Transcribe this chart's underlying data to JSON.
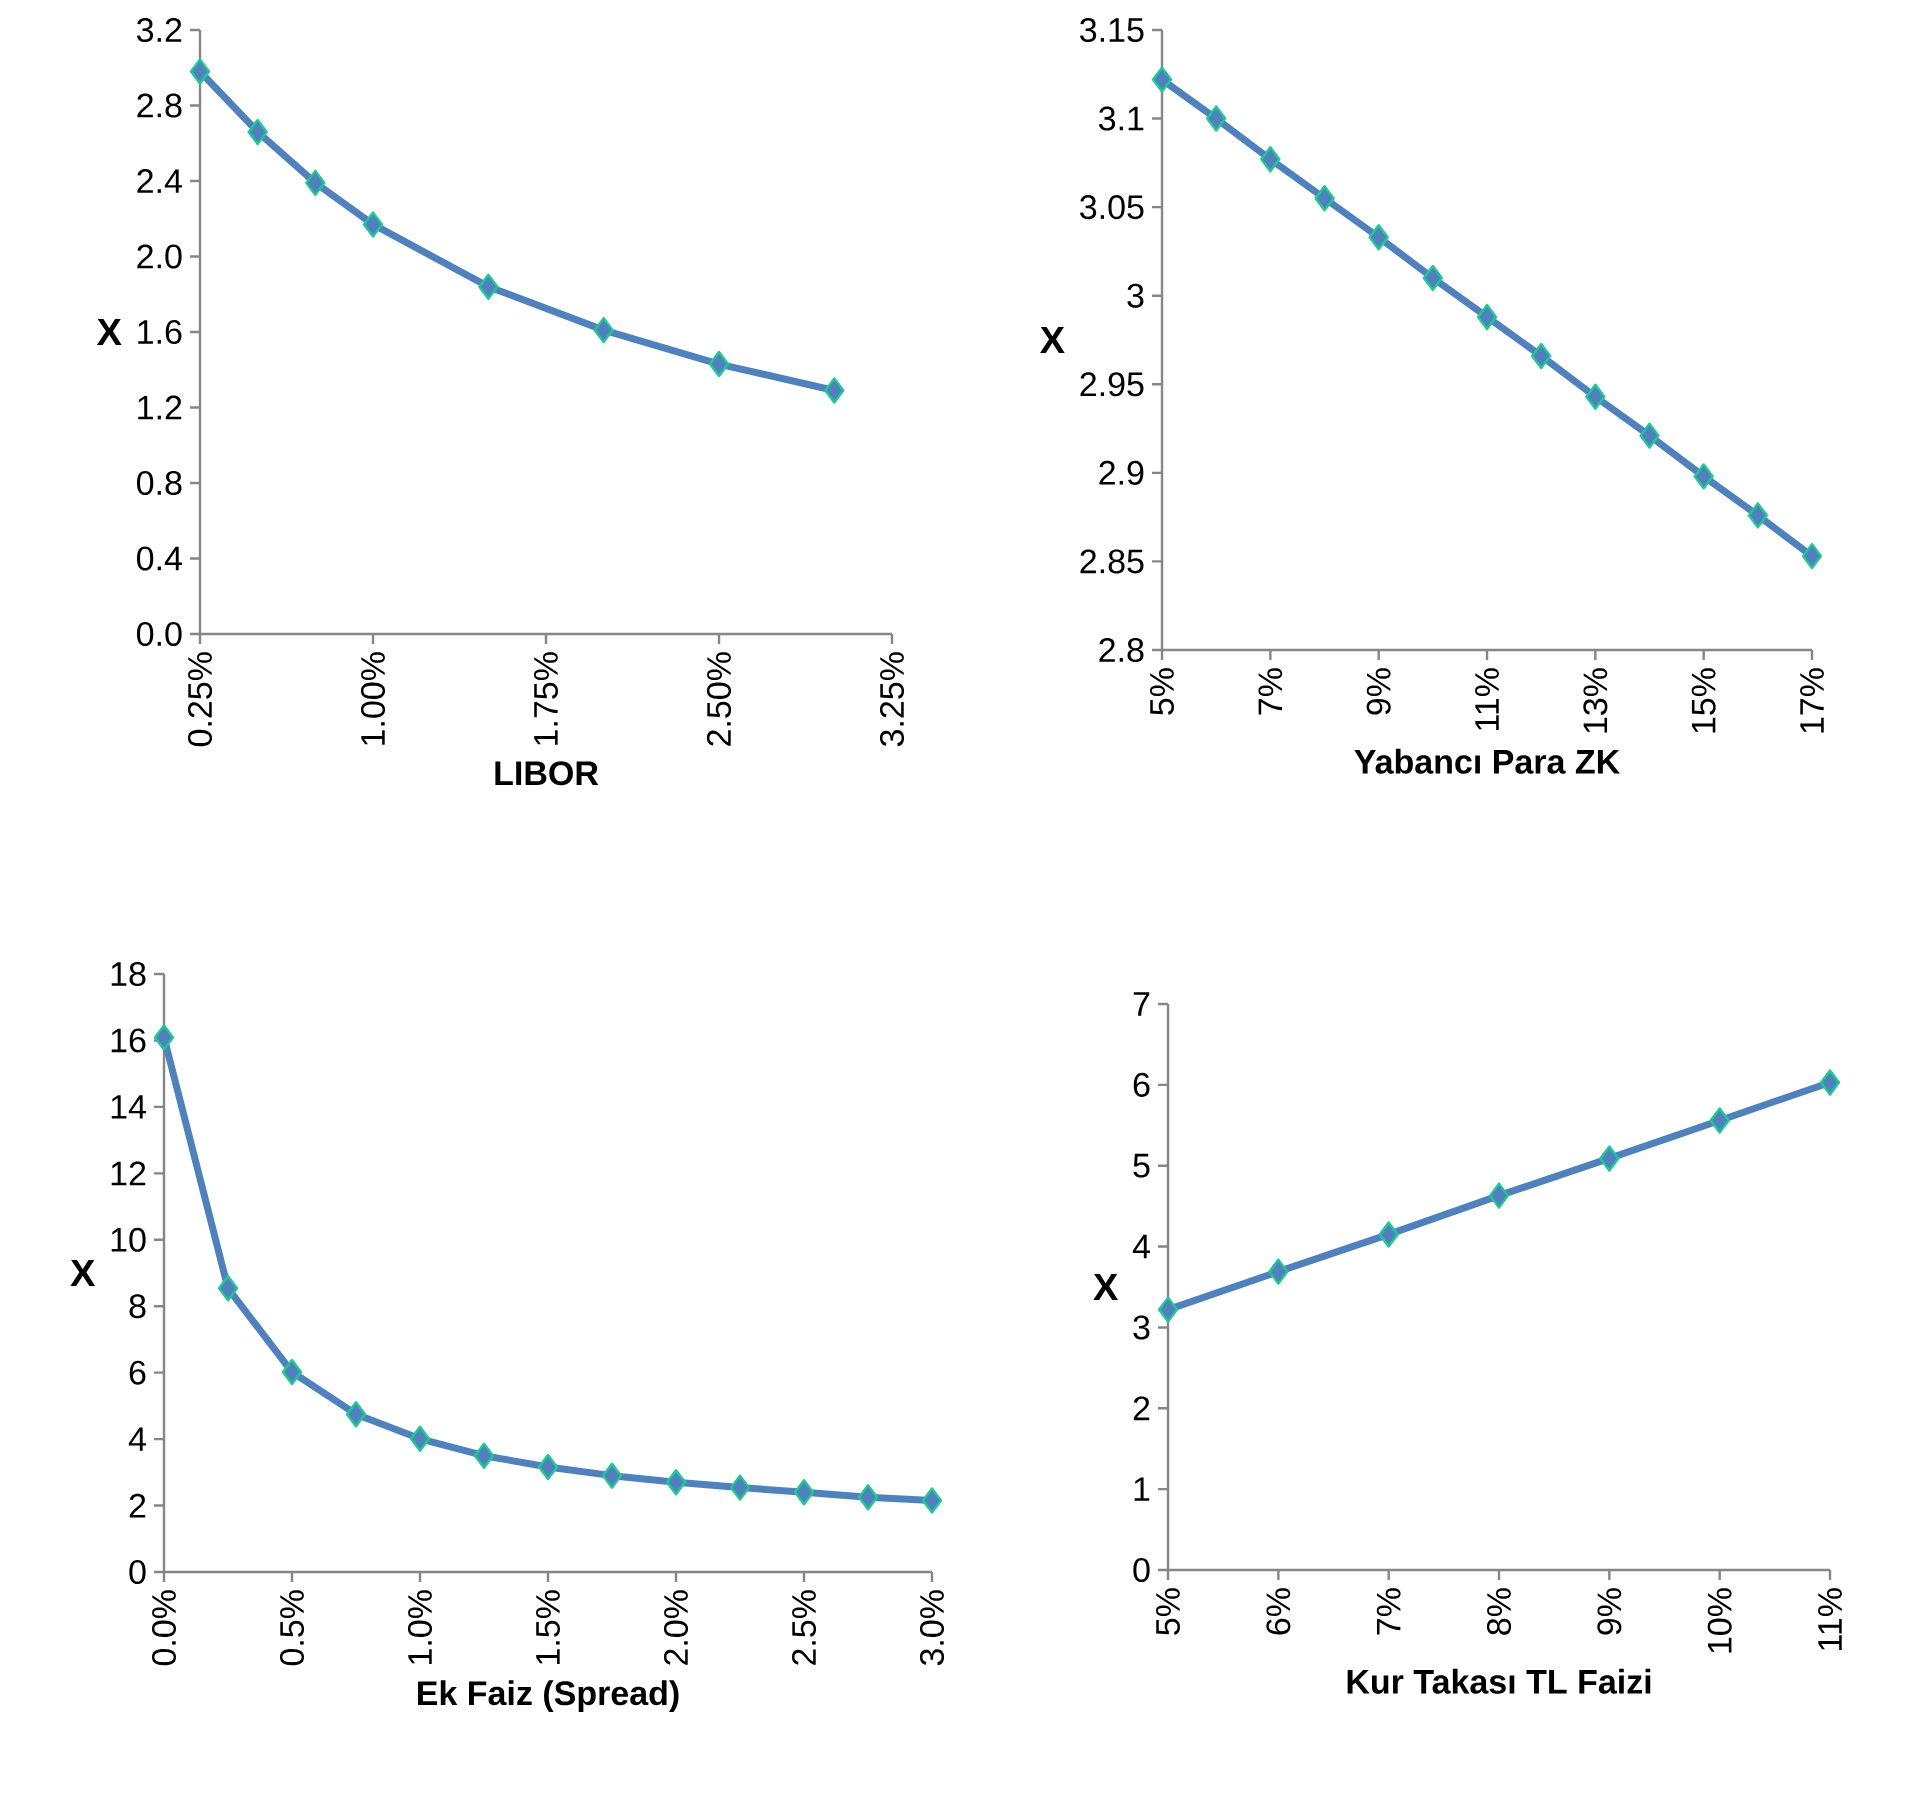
{
  "chart_data": [
    {
      "type": "line",
      "xlabel": "LIBOR",
      "ylabel": "X",
      "color": "#4f81bd",
      "marker": "diamond",
      "x": [
        0.25,
        0.5,
        0.75,
        1.0,
        1.5,
        2.0,
        2.5,
        3.0
      ],
      "values": [
        2.98,
        2.66,
        2.39,
        2.17,
        1.84,
        1.61,
        1.43,
        1.29
      ],
      "xlim": [
        0.25,
        3.25
      ],
      "xticks": [
        {
          "value": 0.25,
          "label": "0.25%"
        },
        {
          "value": 1.0,
          "label": "1.00%"
        },
        {
          "value": 1.75,
          "label": "1.75%"
        },
        {
          "value": 2.5,
          "label": "2.50%"
        },
        {
          "value": 3.25,
          "label": "3.25%"
        }
      ],
      "ylim": [
        0,
        3.2
      ],
      "yticks": [
        {
          "value": 0,
          "label": "0.0"
        },
        0.4,
        0.8,
        1.2,
        1.6,
        {
          "value": 2,
          "label": "2.0"
        },
        2.4,
        2.8,
        3.2
      ]
    },
    {
      "type": "line",
      "xlabel": "Yabancı Para ZK",
      "ylabel": "X",
      "color": "#4f81bd",
      "marker": "diamond",
      "x": [
        5,
        6,
        7,
        8,
        9,
        10,
        11,
        12,
        13,
        14,
        15,
        16,
        17
      ],
      "values": [
        3.122,
        3.1,
        3.077,
        3.055,
        3.033,
        3.01,
        2.988,
        2.966,
        2.943,
        2.921,
        2.898,
        2.876,
        2.853
      ],
      "xlim": [
        5,
        17
      ],
      "xticks": [
        {
          "value": 5,
          "label": "5%"
        },
        {
          "value": 7,
          "label": "7%"
        },
        {
          "value": 9,
          "label": "9%"
        },
        {
          "value": 11,
          "label": "11%"
        },
        {
          "value": 13,
          "label": "13%"
        },
        {
          "value": 15,
          "label": "15%"
        },
        {
          "value": 17,
          "label": "17%"
        }
      ],
      "ylim": [
        2.8,
        3.15
      ],
      "yticks": [
        2.8,
        2.85,
        2.9,
        2.95,
        3,
        3.05,
        3.1,
        3.15
      ]
    },
    {
      "type": "line",
      "xlabel": "Ek Faiz (Spread)",
      "ylabel": "X",
      "color": "#4f81bd",
      "marker": "diamond",
      "x": [
        0,
        0.25,
        0.5,
        0.75,
        1.0,
        1.25,
        1.5,
        1.75,
        2.0,
        2.25,
        2.5,
        2.75,
        3.0
      ],
      "values": [
        16.09,
        8.54,
        6.02,
        4.75,
        4.01,
        3.5,
        3.16,
        2.9,
        2.7,
        2.54,
        2.4,
        2.25,
        2.15
      ],
      "xlim": [
        0,
        3.0
      ],
      "xticks": [
        {
          "value": 0,
          "label": "0.0%"
        },
        {
          "value": 0.5,
          "label": "0.5%"
        },
        {
          "value": 1.0,
          "label": "1.0%"
        },
        {
          "value": 1.5,
          "label": "1.5%"
        },
        {
          "value": 2.0,
          "label": "2.0%"
        },
        {
          "value": 2.5,
          "label": "2.5%"
        },
        {
          "value": 3.0,
          "label": "3.0%"
        }
      ],
      "ylim": [
        0,
        18
      ],
      "yticks": [
        0,
        2,
        4,
        6,
        8,
        10,
        12,
        14,
        16,
        18
      ]
    },
    {
      "type": "line",
      "xlabel": "Kur  Takası TL Faizi",
      "ylabel": "X",
      "color": "#4f81bd",
      "marker": "diamond",
      "x": [
        5,
        6,
        7,
        8,
        9,
        10,
        11
      ],
      "values": [
        3.22,
        3.69,
        4.15,
        4.63,
        5.09,
        5.56,
        6.03
      ],
      "xlim": [
        5,
        11
      ],
      "xticks": [
        {
          "value": 5,
          "label": "5%"
        },
        {
          "value": 6,
          "label": "6%"
        },
        {
          "value": 7,
          "label": "7%"
        },
        {
          "value": 8,
          "label": "8%"
        },
        {
          "value": 9,
          "label": "9%"
        },
        {
          "value": 10,
          "label": "10%"
        },
        {
          "value": 11,
          "label": "11%"
        }
      ],
      "ylim": [
        0,
        7
      ],
      "yticks": [
        0,
        1,
        2,
        3,
        4,
        5,
        6,
        7
      ]
    }
  ]
}
